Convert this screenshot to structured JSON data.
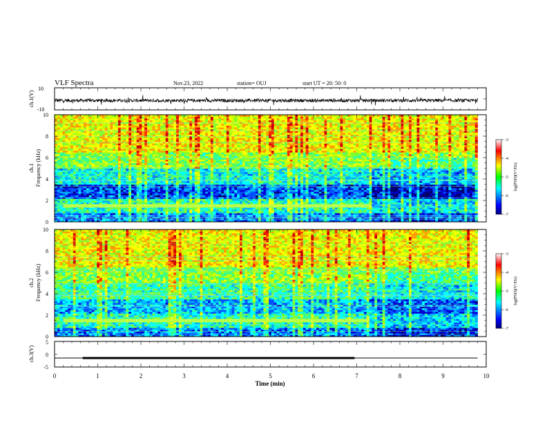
{
  "header": {
    "title": "VLF Spectra",
    "date": "Nov.23, 2022",
    "station": "station= OUJ",
    "start": "start  UT  =   20: 50: 0"
  },
  "chart_data": [
    {
      "type": "line",
      "name": "ch1-waveform",
      "ylabel": "ch.1(V)",
      "ylim": [
        -10,
        10
      ],
      "yticks": [
        "10",
        "-10"
      ],
      "x_range_min": [
        0,
        9.8
      ],
      "baseline_v": -1.5,
      "amplitude_v": 1.5
    },
    {
      "type": "heatmap",
      "name": "ch1-spectrogram",
      "ylabel": "ch.1\nFrequency (kHz)",
      "ylim": [
        0,
        10
      ],
      "yticks": [
        "0",
        "2",
        "4",
        "6",
        "8",
        "10"
      ],
      "x_range_min": [
        0,
        9.8
      ],
      "colorbar": {
        "label": "log(PSD)(V²/Hz)",
        "range": [
          -7,
          -3
        ],
        "ticks": [
          "-3",
          "-4",
          "-5",
          "-6",
          "-7"
        ]
      },
      "features": [
        {
          "type": "band",
          "freq_khz": 1.5,
          "from_min": 0.2,
          "to_min": 7.3
        }
      ]
    },
    {
      "type": "heatmap",
      "name": "ch2-spectrogram",
      "ylabel": "ch.2\nFrequency (kHz)",
      "ylim": [
        0,
        10
      ],
      "yticks": [
        "0",
        "2",
        "4",
        "6",
        "8",
        "10"
      ],
      "x_range_min": [
        0,
        9.8
      ],
      "colorbar": {
        "label": "log(PSD)(V²/Hz)",
        "range": [
          -7,
          -3
        ],
        "ticks": [
          "-3",
          "-4",
          "-5",
          "-6",
          "-7"
        ]
      },
      "features": [
        {
          "type": "band",
          "freq_khz": 1.5,
          "from_min": 0.2,
          "to_min": 7.3
        }
      ]
    },
    {
      "type": "line",
      "name": "ch3-level",
      "ylabel": "ch.3(V)",
      "ylim": [
        -5,
        5
      ],
      "yticks": [
        "5",
        "0",
        "-5"
      ],
      "x_range_min": [
        0,
        9.8
      ],
      "level_v": -1.5,
      "segment": {
        "from_min": 0.65,
        "to_min": 6.95
      }
    }
  ],
  "xaxis": {
    "label": "Time (min)",
    "range": [
      0,
      10
    ],
    "ticks": [
      "0",
      "1",
      "2",
      "3",
      "4",
      "5",
      "6",
      "7",
      "8",
      "9",
      "10"
    ]
  }
}
